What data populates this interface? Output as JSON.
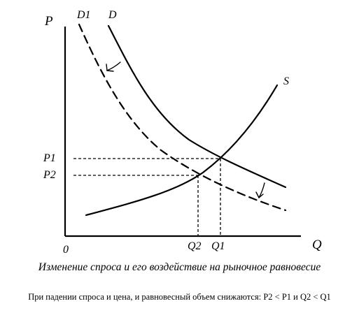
{
  "diagram": {
    "axes": {
      "y_label": "P",
      "x_label": "Q",
      "origin_label": "0"
    },
    "curves": {
      "demand_initial": "D",
      "demand_new": "D1",
      "supply": "S"
    },
    "levels": {
      "p1": "P1",
      "p2": "P2",
      "q1": "Q1",
      "q2": "Q2"
    },
    "shift_direction": "demand decreases (D shifts left to D1)"
  },
  "caption": "Изменение спроса и его воздействие на рыночное равновесие",
  "note": "При падении спроса и цена, и равновесный объем снижаются: P2 < P1 и Q2 < Q1"
}
